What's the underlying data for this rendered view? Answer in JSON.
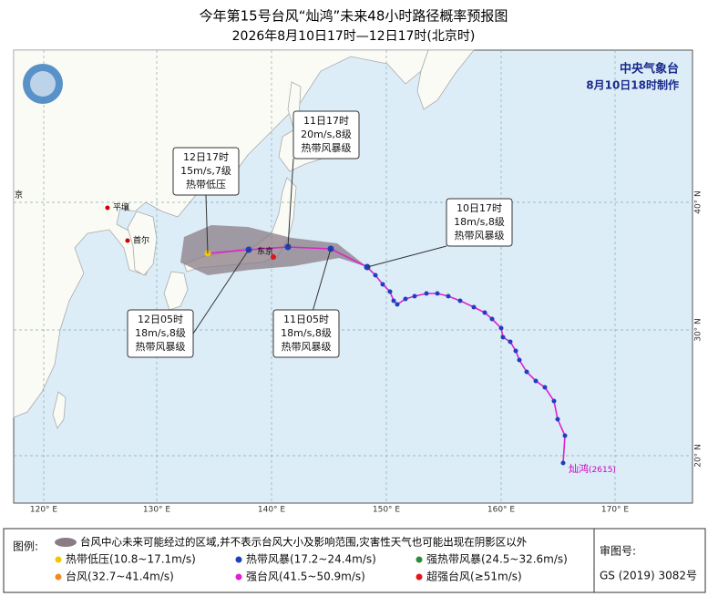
{
  "header": {
    "title": "今年第15号台风“灿鸿”未来48小时路径概率预报图",
    "subtitle": "2026年8月10日17时—12日17时(北京时)"
  },
  "agency": {
    "name": "中央气象台",
    "issued": "8月10日18时制作"
  },
  "callouts": [
    {
      "time": "10日17时",
      "wind": "18m/s,8级",
      "level": "热带风暴级"
    },
    {
      "time": "11日05时",
      "wind": "18m/s,8级",
      "level": "热带风暴级"
    },
    {
      "time": "11日17时",
      "wind": "20m/s,8级",
      "level": "热带风暴级"
    },
    {
      "time": "12日05时",
      "wind": "18m/s,8级",
      "level": "热带风暴级"
    },
    {
      "time": "12日17时",
      "wind": "15m/s,7级",
      "level": "热带低压"
    }
  ],
  "cities": [
    "平壤",
    "首尔",
    "东京",
    "京"
  ],
  "typhoon": {
    "name": "灿鸿",
    "code": "(2615)"
  },
  "lon_labels": [
    "120° E",
    "130° E",
    "140° E",
    "150° E",
    "160° E",
    "170° E"
  ],
  "lat_labels": [
    "40° N",
    "30° N",
    "20° N"
  ],
  "legend": {
    "title": "图例:",
    "note": "台风中心未来可能经过的区域,并不表示台风大小及影响范围,灾害性天气也可能出现在阴影区以外",
    "items": [
      {
        "label": "热带低压(10.8~17.1m/s)",
        "color": "#f2c500"
      },
      {
        "label": "热带风暴(17.2~24.4m/s)",
        "color": "#1f3fbf"
      },
      {
        "label": "强热带风暴(24.5~32.6m/s)",
        "color": "#2e8b3a"
      },
      {
        "label": "台风(32.7~41.4m/s)",
        "color": "#f08a24"
      },
      {
        "label": "强台风(41.5~50.9m/s)",
        "color": "#e020d0"
      },
      {
        "label": "超强台风(≥51m/s)",
        "color": "#e01818"
      }
    ]
  },
  "approval": {
    "label": "审图号:",
    "number": "GS (2019) 3082号"
  }
}
